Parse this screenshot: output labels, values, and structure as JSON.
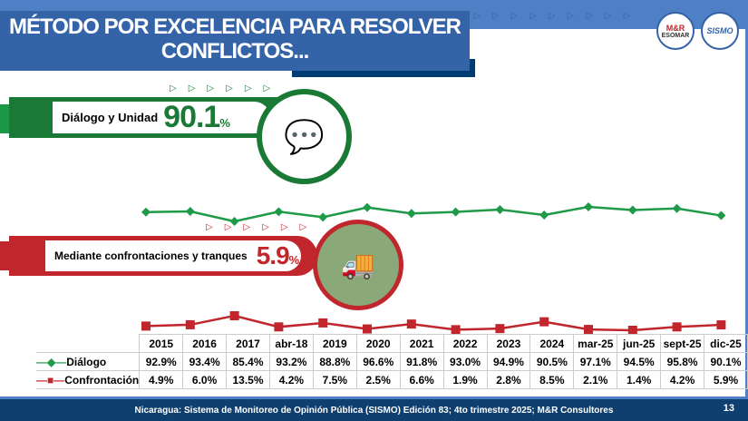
{
  "title": {
    "line1": "MÉTODO POR EXCELENCIA PARA RESOLVER",
    "line2": "CONFLICTOS..."
  },
  "logos": {
    "mr": "M&R Consultores ESOMAR member",
    "sismo": "SISMO"
  },
  "dialogo_banner": {
    "label": "Diálogo y Unidad",
    "value": "90.1",
    "unit": "%",
    "color": "#1a7a35"
  },
  "confrontacion_banner": {
    "label": "Mediante confrontaciones y tranques",
    "value": "5.9",
    "unit": "%",
    "color": "#c0262b"
  },
  "chart_data": {
    "type": "line",
    "categories": [
      "2015",
      "2016",
      "2017",
      "abr-18",
      "2019",
      "2020",
      "2021",
      "2022",
      "2023",
      "2024",
      "mar-25",
      "jun-25",
      "sept-25",
      "dic-25"
    ],
    "series": [
      {
        "name": "Diálogo",
        "color": "#1e9a48",
        "marker": "diamond",
        "values": [
          92.9,
          93.4,
          85.4,
          93.2,
          88.8,
          96.6,
          91.8,
          93.0,
          94.9,
          90.5,
          97.1,
          94.5,
          95.8,
          90.1
        ],
        "labels": [
          "92.9%",
          "93.4%",
          "85.4%",
          "93.2%",
          "88.8%",
          "96.6%",
          "91.8%",
          "93.0%",
          "94.9%",
          "90.5%",
          "97.1%",
          "94.5%",
          "95.8%",
          "90.1%"
        ]
      },
      {
        "name": "Confrontación",
        "color": "#c0262b",
        "marker": "square",
        "values": [
          4.9,
          6.0,
          13.5,
          4.2,
          7.5,
          2.5,
          6.6,
          1.9,
          2.8,
          8.5,
          2.1,
          1.4,
          4.2,
          5.9
        ],
        "labels": [
          "4.9%",
          "6.0%",
          "13.5%",
          "4.2%",
          "7.5%",
          "2.5%",
          "6.6%",
          "1.9%",
          "2.8%",
          "8.5%",
          "2.1%",
          "1.4%",
          "4.2%",
          "5.9%"
        ]
      }
    ]
  },
  "footer": {
    "source": "Nicaragua: Sistema de Monitoreo de Opinión Pública (SISMO) Edición 83; 4to trimestre 2025; M&R Consultores",
    "page": "13"
  }
}
